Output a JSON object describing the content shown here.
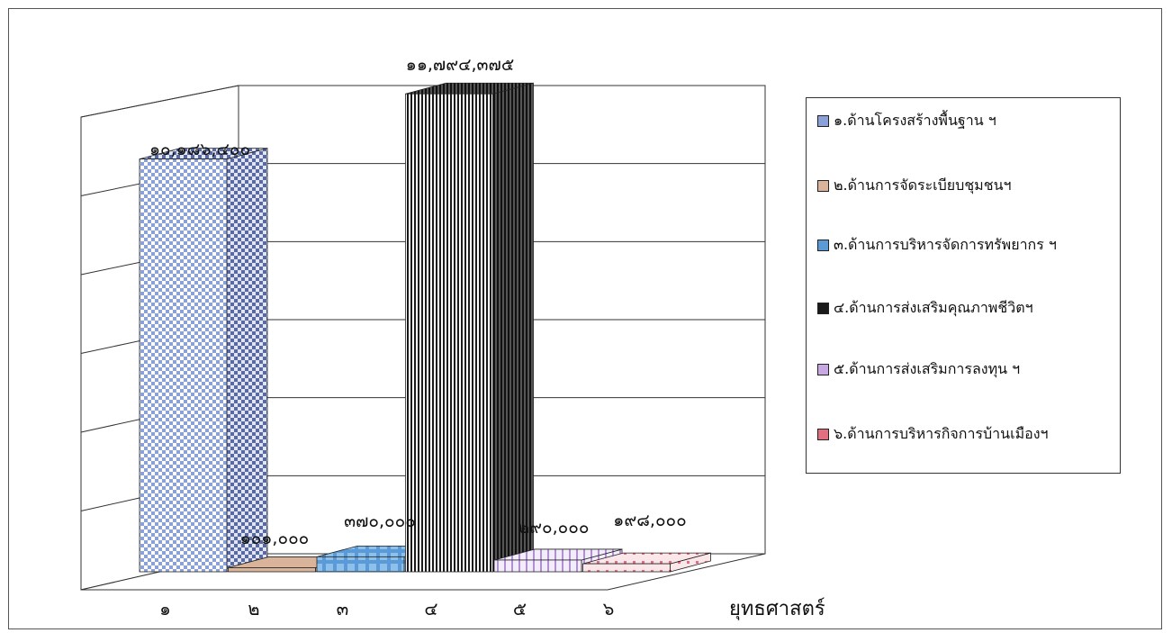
{
  "chart_data": {
    "type": "bar",
    "categories": [
      "๑",
      "๒",
      "๓",
      "๔",
      "๕",
      "๖"
    ],
    "values": [
      10186400,
      101000,
      370000,
      11794375,
      290000,
      198000
    ],
    "data_labels": [
      "๑๐,๑๘๖,๔๐๐",
      "๑๐๑,๐๐๐",
      "๓๗๐,๐๐๐",
      "๑๑,๗๙๔,๓๗๕",
      "๒๙๐,๐๐๐",
      "๑๙๘,๐๐๐"
    ],
    "xlabel": "ยุทธศาสตร์",
    "ylim": [
      0,
      12000000
    ],
    "grid": true,
    "legend_position": "right",
    "series": [
      {
        "name": "๑.ด้านโครงสร้างพื้นฐาน ฯ",
        "color": "#8aa0d8",
        "pattern": "checker"
      },
      {
        "name": "๒.ด้านการจัดระเบียบชุมชนฯ",
        "color": "#d9b49a",
        "pattern": "solid"
      },
      {
        "name": "๓.ด้านการบริหารจัดการทรัพยากร ฯ",
        "color": "#5a9ad6",
        "pattern": "grid"
      },
      {
        "name": "๔.ด้านการส่งเสริมคุณภาพชีวิตฯ",
        "color": "#1a1a1a",
        "pattern": "vstripes"
      },
      {
        "name": "๕.ด้านการส่งเสริมการลงทุน ฯ",
        "color": "#c8a8e0",
        "pattern": "vstripes-light"
      },
      {
        "name": "๖.ด้านการบริหารกิจการบ้านเมืองฯ",
        "color": "#e07080",
        "pattern": "dots"
      }
    ]
  }
}
